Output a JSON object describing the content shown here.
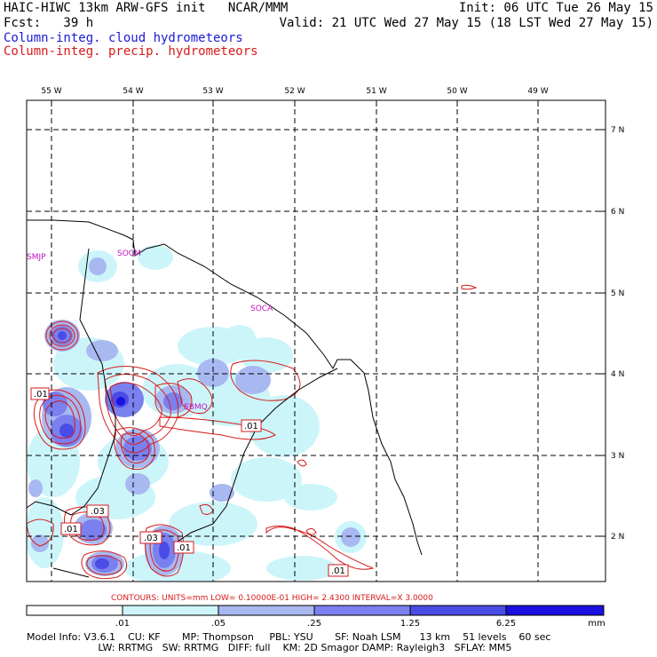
{
  "header": {
    "line1_left": "HAIC-HIWC 13km ARW-GFS init   NCAR/MMM",
    "line1_right": "Init: 06 UTC Tue 26 May 15",
    "line2_left": "Fcst:   39 h",
    "line2_right": "Valid: 21 UTC Wed 27 May 15 (18 LST Wed 27 May 15)",
    "line3": "Column-integ. cloud hydrometeors",
    "line4": "Column-integ. precip. hydrometeors"
  },
  "map": {
    "lon_labels": [
      "55 W",
      "54 W",
      "53 W",
      "52 W",
      "51 W",
      "50 W",
      "49 W"
    ],
    "lat_labels": [
      "7 N",
      "6 N",
      "5 N",
      "4 N",
      "3 N",
      "2 N"
    ],
    "stations": [
      "SMJP",
      "SOCM",
      "SOCA",
      "SBMQ"
    ],
    "contour_labels": [
      ".01",
      ".01",
      ".03",
      ".01",
      ".03",
      ".01",
      ".01"
    ]
  },
  "contour_info": {
    "text": "CONTOURS:  UNITS=mm   LOW= 0.10000E-01   HIGH=  2.4300      INTERVAL=X  3.0000"
  },
  "colorbar": {
    "tick_labels": [
      ".01",
      ".05",
      ".25",
      "1.25",
      "6.25"
    ],
    "units": "mm",
    "colors": [
      "#ffffff",
      "#ccf5fa",
      "#a8b8f0",
      "#7a80ee",
      "#4a4ce6",
      "#1a10e0"
    ]
  },
  "footer": {
    "line1": "Model Info: V3.6.1    CU: KF       MP: Thompson     PBL: YSU       SF: Noah LSM      13 km    51 levels    60 sec",
    "line2": "                       LW: RRTMG   SW: RRTMG   DIFF: full    KM: 2D Smagor DAMP: Rayleigh3   SFLAY: MM5"
  }
}
